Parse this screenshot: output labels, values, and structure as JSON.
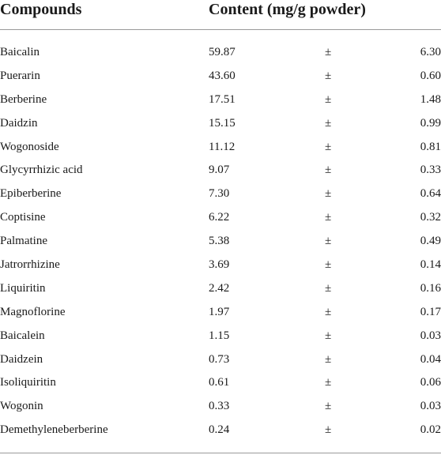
{
  "table": {
    "headers": {
      "compounds": "Compounds",
      "content": "Content (mg/g powder)"
    },
    "rows": [
      {
        "compound": "Baicalin",
        "value": "59.87",
        "pm": "±",
        "sd": "6.30"
      },
      {
        "compound": "Puerarin",
        "value": "43.60",
        "pm": "±",
        "sd": "0.60"
      },
      {
        "compound": "Berberine",
        "value": "17.51",
        "pm": "±",
        "sd": "1.48"
      },
      {
        "compound": "Daidzin",
        "value": "15.15",
        "pm": "±",
        "sd": "0.99"
      },
      {
        "compound": "Wogonoside",
        "value": "11.12",
        "pm": "±",
        "sd": "0.81"
      },
      {
        "compound": "Glycyrrhizic acid",
        "value": "9.07",
        "pm": "±",
        "sd": "0.33"
      },
      {
        "compound": "Epiberberine",
        "value": "7.30",
        "pm": "±",
        "sd": "0.64"
      },
      {
        "compound": "Coptisine",
        "value": "6.22",
        "pm": "±",
        "sd": "0.32"
      },
      {
        "compound": "Palmatine",
        "value": "5.38",
        "pm": "±",
        "sd": "0.49"
      },
      {
        "compound": "Jatrorrhizine",
        "value": "3.69",
        "pm": "±",
        "sd": "0.14"
      },
      {
        "compound": "Liquiritin",
        "value": "2.42",
        "pm": "±",
        "sd": "0.16"
      },
      {
        "compound": "Magnoflorine",
        "value": "1.97",
        "pm": "±",
        "sd": "0.17"
      },
      {
        "compound": "Baicalein",
        "value": "1.15",
        "pm": "±",
        "sd": "0.03"
      },
      {
        "compound": "Daidzein",
        "value": "0.73",
        "pm": "±",
        "sd": "0.04"
      },
      {
        "compound": "Isoliquiritin",
        "value": "0.61",
        "pm": "±",
        "sd": "0.06"
      },
      {
        "compound": "Wogonin",
        "value": "0.33",
        "pm": "±",
        "sd": "0.03"
      },
      {
        "compound": "Demethyleneberberine",
        "value": "0.24",
        "pm": "±",
        "sd": "0.02"
      }
    ]
  }
}
